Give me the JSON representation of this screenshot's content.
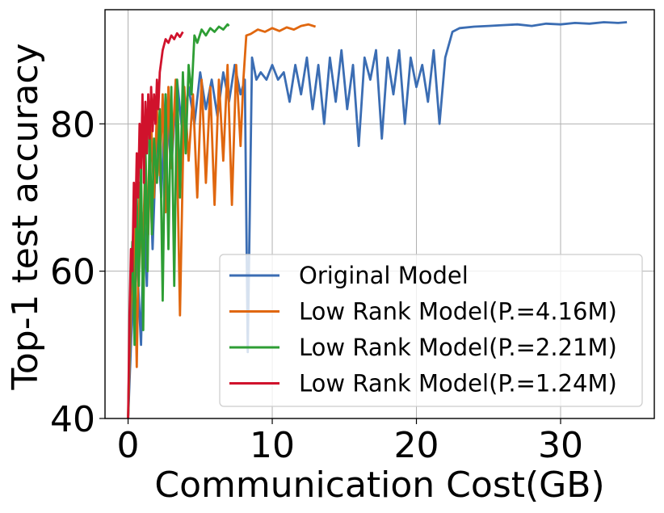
{
  "chart_data": {
    "type": "line",
    "title": "",
    "xlabel": "Communication Cost(GB)",
    "ylabel": "Top-1 test accuracy",
    "xlim": [
      -1.6,
      36.5
    ],
    "ylim": [
      40,
      95.5
    ],
    "xticks": [
      0,
      10,
      20,
      30
    ],
    "yticks": [
      40,
      60,
      80
    ],
    "xtick_labels": [
      "0",
      "10",
      "20",
      "30"
    ],
    "ytick_labels": [
      "40",
      "60",
      "80"
    ],
    "grid": true,
    "legend_position": "lower-right",
    "series": [
      {
        "name": "Original Model",
        "color": "#3B6DB3",
        "x": [
          0,
          0.3,
          0.6,
          0.9,
          1.1,
          1.3,
          1.5,
          1.7,
          2.0,
          2.3,
          2.6,
          3.0,
          3.4,
          3.8,
          4.2,
          4.6,
          5.0,
          5.4,
          5.8,
          6.2,
          6.6,
          7.0,
          7.4,
          7.8,
          8.1,
          8.3,
          8.6,
          8.9,
          9.2,
          9.6,
          10.0,
          10.4,
          10.8,
          11.2,
          11.6,
          12.0,
          12.4,
          12.8,
          13.2,
          13.6,
          14.0,
          14.4,
          14.8,
          15.2,
          15.6,
          16.0,
          16.4,
          16.8,
          17.2,
          17.6,
          18.0,
          18.4,
          18.8,
          19.2,
          19.6,
          20.0,
          20.4,
          20.8,
          21.2,
          21.6,
          22.0,
          22.5,
          23.0,
          24.0,
          25.0,
          26.0,
          27.0,
          28.0,
          29.0,
          30.0,
          31.0,
          32.0,
          33.0,
          34.0,
          34.6
        ],
        "y": [
          40,
          55,
          62,
          50,
          68,
          58,
          75,
          63,
          80,
          70,
          84,
          74,
          86,
          78,
          85,
          80,
          87,
          82,
          86,
          81,
          87,
          83,
          88,
          84,
          86,
          49,
          89,
          86,
          87,
          86,
          88,
          86,
          87,
          83,
          88,
          84,
          89,
          82,
          88,
          80,
          89,
          83,
          90,
          82,
          88,
          77,
          89,
          86,
          90,
          78,
          89,
          84,
          90,
          80,
          89,
          85,
          88,
          83,
          90,
          80,
          89,
          92.5,
          93,
          93.2,
          93.3,
          93.4,
          93.5,
          93.3,
          93.6,
          93.5,
          93.7,
          93.6,
          93.8,
          93.7,
          93.8
        ]
      },
      {
        "name": "Low Rank Model(P.=4.16M)",
        "color": "#E0670F",
        "x": [
          0,
          0.2,
          0.4,
          0.6,
          0.8,
          1.0,
          1.2,
          1.4,
          1.6,
          1.8,
          2.0,
          2.2,
          2.4,
          2.6,
          2.8,
          3.0,
          3.3,
          3.6,
          3.9,
          4.2,
          4.5,
          4.8,
          5.1,
          5.4,
          5.7,
          6.0,
          6.3,
          6.6,
          6.9,
          7.2,
          7.5,
          7.8,
          8.0,
          8.2,
          8.5,
          9.0,
          9.5,
          10.0,
          10.5,
          11.0,
          11.5,
          12.0,
          12.5,
          13.0
        ],
        "y": [
          40,
          55,
          68,
          47,
          72,
          60,
          76,
          65,
          80,
          70,
          82,
          73,
          84,
          68,
          85,
          74,
          86,
          54,
          85,
          75,
          84,
          70,
          86,
          72,
          85,
          69,
          86,
          75,
          88,
          69,
          88,
          77,
          86,
          92,
          92.2,
          92.8,
          92.5,
          93,
          92.6,
          93.1,
          92.8,
          93.3,
          93.5,
          93.2
        ]
      },
      {
        "name": "Low Rank Model(P.=2.21M)",
        "color": "#2E9E34",
        "x": [
          0,
          0.15,
          0.3,
          0.45,
          0.6,
          0.75,
          0.9,
          1.05,
          1.2,
          1.35,
          1.5,
          1.65,
          1.8,
          2.0,
          2.2,
          2.4,
          2.6,
          2.8,
          3.0,
          3.2,
          3.4,
          3.6,
          3.8,
          4.0,
          4.2,
          4.4,
          4.6,
          4.8,
          5.1,
          5.4,
          5.7,
          6.0,
          6.3,
          6.6,
          6.9,
          7.0
        ],
        "y": [
          40,
          56,
          64,
          50,
          70,
          58,
          74,
          52,
          77,
          60,
          80,
          65,
          78,
          72,
          82,
          56,
          84,
          63,
          85,
          58,
          86,
          70,
          87,
          76,
          88,
          84,
          92,
          91,
          92.8,
          92,
          93,
          92.5,
          93.2,
          92.8,
          93.5,
          93.3
        ]
      },
      {
        "name": "Low Rank Model(P.=1.24M)",
        "color": "#D0122C",
        "x": [
          0,
          0.1,
          0.2,
          0.3,
          0.4,
          0.5,
          0.6,
          0.7,
          0.8,
          0.9,
          1.0,
          1.1,
          1.2,
          1.3,
          1.4,
          1.5,
          1.6,
          1.7,
          1.8,
          1.9,
          2.0,
          2.1,
          2.2,
          2.4,
          2.6,
          2.8,
          3.0,
          3.2,
          3.4,
          3.6,
          3.8
        ],
        "y": [
          40,
          54,
          63,
          60,
          72,
          66,
          76,
          70,
          80,
          74,
          84,
          72,
          83,
          76,
          84,
          78,
          85,
          79,
          84,
          80,
          86,
          82,
          87,
          90,
          91.5,
          91,
          92,
          91.5,
          92.3,
          91.8,
          92.5
        ]
      }
    ]
  }
}
